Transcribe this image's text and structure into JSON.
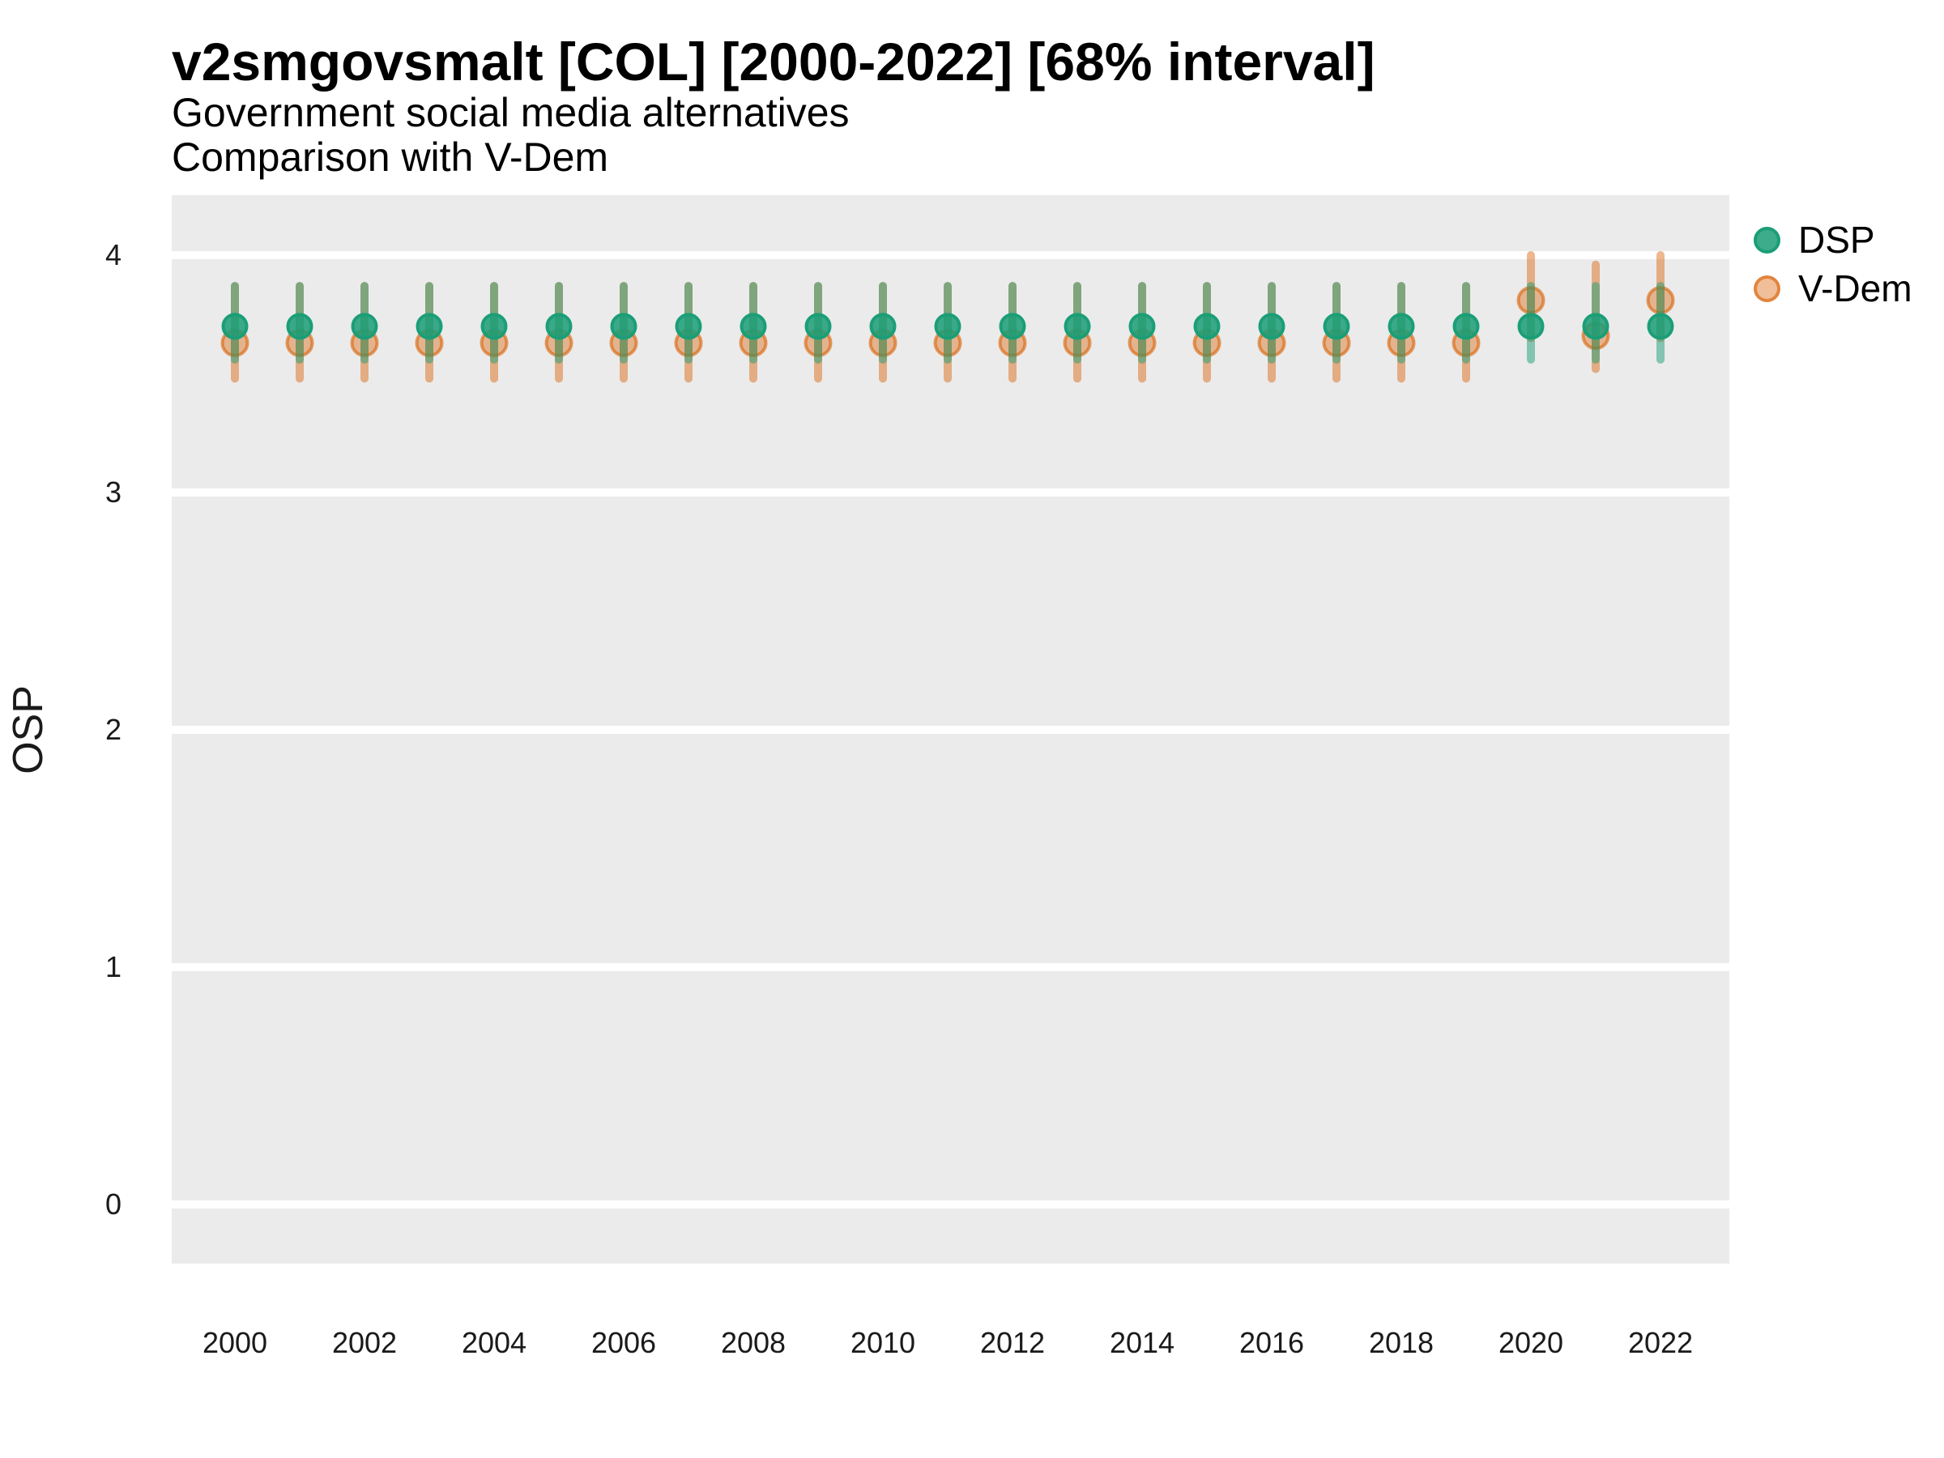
{
  "chart_data": {
    "type": "scatter",
    "title": "v2smgovsmalt [COL] [2000-2022] [68% interval]",
    "subtitle_line1": "Government social media alternatives",
    "subtitle_line2": "Comparison with V-Dem",
    "ylabel": "OSP",
    "xlabel": "",
    "interval": "68%",
    "ylim": [
      -0.24,
      4.26
    ],
    "xlim": [
      1999,
      2023.1
    ],
    "y_ticks": [
      4,
      3,
      2,
      1,
      0
    ],
    "x_ticks": [
      2000,
      2002,
      2004,
      2006,
      2008,
      2010,
      2012,
      2014,
      2016,
      2018,
      2020,
      2022
    ],
    "grid": "major-horizontal-only",
    "legend_position": "right-top",
    "panel_bg": "#EBEBEB",
    "grid_color": "#FFFFFF",
    "text_color": "#1A1A1A",
    "series": [
      {
        "name": "DSP",
        "color": "#1B9E77",
        "points": [
          {
            "year": 2000,
            "est": 3.7,
            "lo": 3.56,
            "hi": 3.87
          },
          {
            "year": 2001,
            "est": 3.7,
            "lo": 3.56,
            "hi": 3.87
          },
          {
            "year": 2002,
            "est": 3.7,
            "lo": 3.56,
            "hi": 3.87
          },
          {
            "year": 2003,
            "est": 3.7,
            "lo": 3.56,
            "hi": 3.87
          },
          {
            "year": 2004,
            "est": 3.7,
            "lo": 3.56,
            "hi": 3.87
          },
          {
            "year": 2005,
            "est": 3.7,
            "lo": 3.56,
            "hi": 3.87
          },
          {
            "year": 2006,
            "est": 3.7,
            "lo": 3.56,
            "hi": 3.87
          },
          {
            "year": 2007,
            "est": 3.7,
            "lo": 3.56,
            "hi": 3.87
          },
          {
            "year": 2008,
            "est": 3.7,
            "lo": 3.56,
            "hi": 3.87
          },
          {
            "year": 2009,
            "est": 3.7,
            "lo": 3.56,
            "hi": 3.87
          },
          {
            "year": 2010,
            "est": 3.7,
            "lo": 3.56,
            "hi": 3.87
          },
          {
            "year": 2011,
            "est": 3.7,
            "lo": 3.56,
            "hi": 3.87
          },
          {
            "year": 2012,
            "est": 3.7,
            "lo": 3.56,
            "hi": 3.87
          },
          {
            "year": 2013,
            "est": 3.7,
            "lo": 3.56,
            "hi": 3.87
          },
          {
            "year": 2014,
            "est": 3.7,
            "lo": 3.56,
            "hi": 3.87
          },
          {
            "year": 2015,
            "est": 3.7,
            "lo": 3.56,
            "hi": 3.87
          },
          {
            "year": 2016,
            "est": 3.7,
            "lo": 3.56,
            "hi": 3.87
          },
          {
            "year": 2017,
            "est": 3.7,
            "lo": 3.56,
            "hi": 3.87
          },
          {
            "year": 2018,
            "est": 3.7,
            "lo": 3.56,
            "hi": 3.87
          },
          {
            "year": 2019,
            "est": 3.7,
            "lo": 3.56,
            "hi": 3.87
          },
          {
            "year": 2020,
            "est": 3.7,
            "lo": 3.56,
            "hi": 3.87
          },
          {
            "year": 2021,
            "est": 3.7,
            "lo": 3.56,
            "hi": 3.87
          },
          {
            "year": 2022,
            "est": 3.7,
            "lo": 3.56,
            "hi": 3.87
          }
        ]
      },
      {
        "name": "V-Dem",
        "color": "#D95F02",
        "points": [
          {
            "year": 2000,
            "est": 3.63,
            "lo": 3.48,
            "hi": 3.87
          },
          {
            "year": 2001,
            "est": 3.63,
            "lo": 3.48,
            "hi": 3.87
          },
          {
            "year": 2002,
            "est": 3.63,
            "lo": 3.48,
            "hi": 3.87
          },
          {
            "year": 2003,
            "est": 3.63,
            "lo": 3.48,
            "hi": 3.87
          },
          {
            "year": 2004,
            "est": 3.63,
            "lo": 3.48,
            "hi": 3.87
          },
          {
            "year": 2005,
            "est": 3.63,
            "lo": 3.48,
            "hi": 3.87
          },
          {
            "year": 2006,
            "est": 3.63,
            "lo": 3.48,
            "hi": 3.87
          },
          {
            "year": 2007,
            "est": 3.63,
            "lo": 3.48,
            "hi": 3.87
          },
          {
            "year": 2008,
            "est": 3.63,
            "lo": 3.48,
            "hi": 3.87
          },
          {
            "year": 2009,
            "est": 3.63,
            "lo": 3.48,
            "hi": 3.87
          },
          {
            "year": 2010,
            "est": 3.63,
            "lo": 3.48,
            "hi": 3.87
          },
          {
            "year": 2011,
            "est": 3.63,
            "lo": 3.48,
            "hi": 3.87
          },
          {
            "year": 2012,
            "est": 3.63,
            "lo": 3.48,
            "hi": 3.87
          },
          {
            "year": 2013,
            "est": 3.63,
            "lo": 3.48,
            "hi": 3.87
          },
          {
            "year": 2014,
            "est": 3.63,
            "lo": 3.48,
            "hi": 3.87
          },
          {
            "year": 2015,
            "est": 3.63,
            "lo": 3.48,
            "hi": 3.87
          },
          {
            "year": 2016,
            "est": 3.63,
            "lo": 3.48,
            "hi": 3.87
          },
          {
            "year": 2017,
            "est": 3.63,
            "lo": 3.48,
            "hi": 3.87
          },
          {
            "year": 2018,
            "est": 3.63,
            "lo": 3.48,
            "hi": 3.87
          },
          {
            "year": 2019,
            "est": 3.63,
            "lo": 3.48,
            "hi": 3.87
          },
          {
            "year": 2020,
            "est": 3.81,
            "lo": 3.65,
            "hi": 4.0
          },
          {
            "year": 2021,
            "est": 3.66,
            "lo": 3.52,
            "hi": 3.96
          },
          {
            "year": 2022,
            "est": 3.81,
            "lo": 3.65,
            "hi": 4.0
          }
        ]
      }
    ]
  }
}
